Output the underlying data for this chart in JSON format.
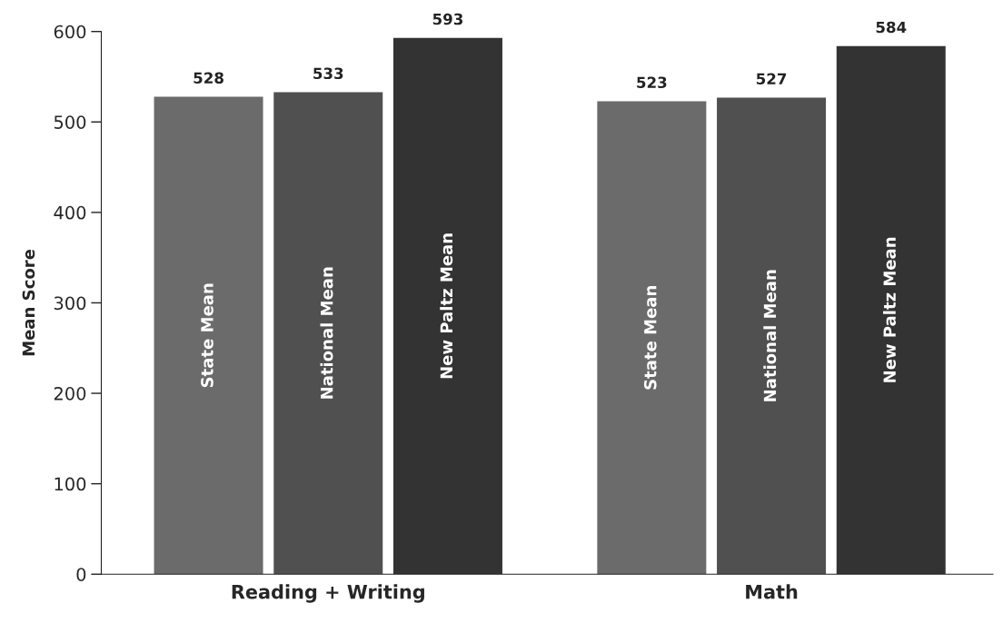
{
  "chart_data": {
    "type": "bar",
    "ylabel": "Mean Score",
    "categories": [
      "Reading + Writing",
      "Math"
    ],
    "series": [
      {
        "name": "State Mean",
        "color": "#6b6b6b",
        "values": [
          528,
          523
        ]
      },
      {
        "name": "National Mean",
        "color": "#505050",
        "values": [
          533,
          527
        ]
      },
      {
        "name": "New Paltz Mean",
        "color": "#333333",
        "values": [
          593,
          584
        ]
      }
    ],
    "ylim": [
      0,
      600
    ],
    "yticks": [
      0,
      100,
      200,
      300,
      400,
      500,
      600
    ],
    "data_labels": true,
    "grid": false,
    "legend": false
  }
}
